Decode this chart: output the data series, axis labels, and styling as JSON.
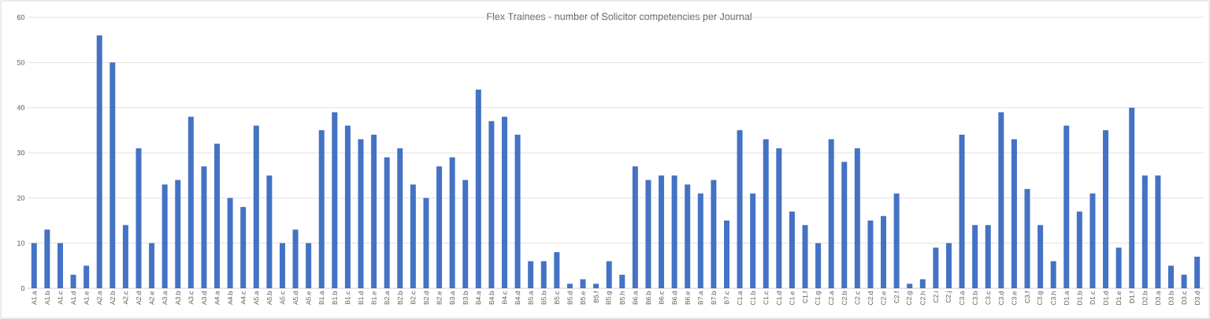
{
  "chart_data": {
    "type": "bar",
    "title": "Flex Trainees - number of Solicitor competencies per Journal",
    "categories": [
      "A1.a",
      "A1.b",
      "A1.c",
      "A1.d",
      "A1.e",
      "A2.a",
      "A2.b",
      "A2.c",
      "A2.d",
      "A2.e",
      "A3.a",
      "A3.b",
      "A3.c",
      "A3.d",
      "A4.a",
      "A4.b",
      "A4.c",
      "A5.a",
      "A5.b",
      "A5.c",
      "A5.d",
      "A5.e",
      "B1.a",
      "B1.b",
      "B1.c",
      "B1.d",
      "B1.e",
      "B2.a",
      "B2.b",
      "B2.c",
      "B2.d",
      "B2.e",
      "B3.a",
      "B3.b",
      "B4.a",
      "B4.b",
      "B4.c",
      "B4.d",
      "B5.a",
      "B5.b",
      "B5.c",
      "B5.d",
      "B5.e",
      "B5.f",
      "B5.g",
      "B5.h",
      "B6.a",
      "B6.b",
      "B6.c",
      "B6.d",
      "B6.e",
      "B7.a",
      "B7.b",
      "B7.c",
      "C1.a",
      "C1.b",
      "C1.c",
      "C1.d",
      "C1.e",
      "C1.f",
      "C1.g",
      "C2.a",
      "C2.b",
      "C2.c",
      "C2.d",
      "C2.e",
      "C2.f",
      "C2.g",
      "C2.h",
      "C2.i",
      "C2.j",
      "C3.a",
      "C3.b",
      "C3.c",
      "C3.d",
      "C3.e",
      "C3.f",
      "C3.g",
      "C3.h",
      "D1.a",
      "D1.b",
      "D1.c",
      "D1.d",
      "D1.e",
      "D1.f",
      "D2.b",
      "D3.a",
      "D3.b",
      "D3.c",
      "D3.d"
    ],
    "values": [
      10,
      13,
      10,
      3,
      5,
      56,
      50,
      14,
      31,
      10,
      23,
      24,
      38,
      27,
      32,
      20,
      18,
      36,
      25,
      10,
      13,
      10,
      35,
      39,
      36,
      33,
      34,
      29,
      31,
      23,
      20,
      27,
      29,
      24,
      44,
      37,
      38,
      34,
      6,
      6,
      8,
      1,
      2,
      1,
      6,
      3,
      27,
      24,
      25,
      25,
      23,
      21,
      24,
      15,
      35,
      21,
      33,
      31,
      17,
      14,
      10,
      33,
      28,
      31,
      15,
      16,
      21,
      1,
      2,
      9,
      10,
      34,
      14,
      14,
      39,
      33,
      22,
      14,
      6,
      36,
      17,
      21,
      35,
      9,
      40,
      25,
      25,
      5,
      3,
      7
    ],
    "color": "#4472c4",
    "ylim": [
      0,
      60
    ],
    "yticks": [
      0,
      10,
      20,
      30,
      40,
      50,
      60
    ],
    "grid": "y"
  }
}
